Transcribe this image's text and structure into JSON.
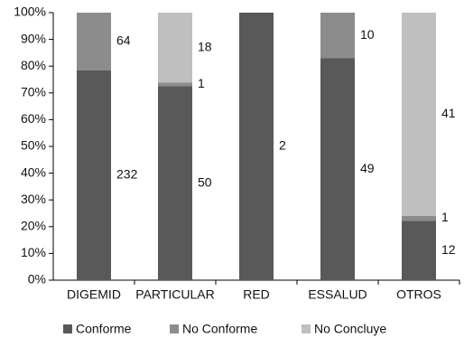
{
  "chart_data": {
    "type": "bar",
    "stacked": "percent",
    "categories": [
      "DIGEMID",
      "PARTICULAR",
      "RED",
      "ESSALUD",
      "OTROS"
    ],
    "series": [
      {
        "name": "Conforme",
        "color": "#595959",
        "values": [
          232,
          50,
          2,
          49,
          12
        ]
      },
      {
        "name": "No Conforme",
        "color": "#8c8c8c",
        "values": [
          64,
          1,
          0,
          10,
          1
        ]
      },
      {
        "name": "No Concluye",
        "color": "#bfbfbf",
        "values": [
          0,
          18,
          0,
          0,
          41
        ]
      }
    ],
    "ylim": [
      0,
      100
    ],
    "yticks": [
      {
        "value": 0,
        "label": "0%"
      },
      {
        "value": 10,
        "label": "10%"
      },
      {
        "value": 20,
        "label": "20%"
      },
      {
        "value": 30,
        "label": "30%"
      },
      {
        "value": 40,
        "label": "40%"
      },
      {
        "value": 50,
        "label": "50%"
      },
      {
        "value": 60,
        "label": "60%"
      },
      {
        "value": 70,
        "label": "70%"
      },
      {
        "value": 80,
        "label": "80%"
      },
      {
        "value": 90,
        "label": "90%"
      },
      {
        "value": 100,
        "label": "100%"
      }
    ],
    "legend": "bottom"
  }
}
